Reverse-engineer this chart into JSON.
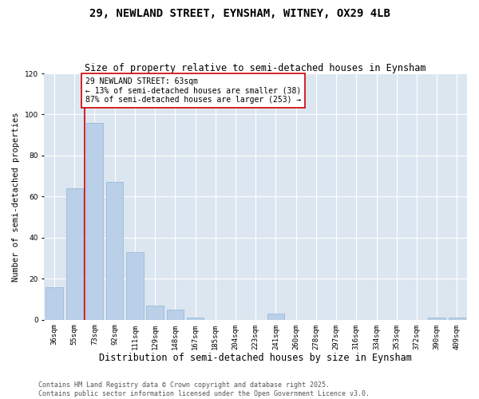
{
  "title": "29, NEWLAND STREET, EYNSHAM, WITNEY, OX29 4LB",
  "subtitle": "Size of property relative to semi-detached houses in Eynsham",
  "xlabel": "Distribution of semi-detached houses by size in Eynsham",
  "ylabel": "Number of semi-detached properties",
  "categories": [
    "36sqm",
    "55sqm",
    "73sqm",
    "92sqm",
    "111sqm",
    "129sqm",
    "148sqm",
    "167sqm",
    "185sqm",
    "204sqm",
    "223sqm",
    "241sqm",
    "260sqm",
    "278sqm",
    "297sqm",
    "316sqm",
    "334sqm",
    "353sqm",
    "372sqm",
    "390sqm",
    "409sqm"
  ],
  "values": [
    16,
    64,
    96,
    67,
    33,
    7,
    5,
    1,
    0,
    0,
    0,
    3,
    0,
    0,
    0,
    0,
    0,
    0,
    0,
    1,
    1
  ],
  "bar_color": "#bad0e8",
  "bar_edge_color": "#8eb4d4",
  "vline_x": 1.5,
  "vline_color": "#cc0000",
  "annotation_text": "29 NEWLAND STREET: 63sqm\n← 13% of semi-detached houses are smaller (38)\n87% of semi-detached houses are larger (253) →",
  "annotation_box_facecolor": "#ffffff",
  "annotation_box_edgecolor": "#cc0000",
  "ylim": [
    0,
    120
  ],
  "yticks": [
    0,
    20,
    40,
    60,
    80,
    100,
    120
  ],
  "fig_facecolor": "#ffffff",
  "plot_facecolor": "#dce6f0",
  "grid_color": "#ffffff",
  "footer_text": "Contains HM Land Registry data © Crown copyright and database right 2025.\nContains public sector information licensed under the Open Government Licence v3.0.",
  "title_fontsize": 10,
  "subtitle_fontsize": 8.5,
  "xlabel_fontsize": 8.5,
  "ylabel_fontsize": 7.5,
  "tick_fontsize": 6.5,
  "annotation_fontsize": 7,
  "footer_fontsize": 6
}
